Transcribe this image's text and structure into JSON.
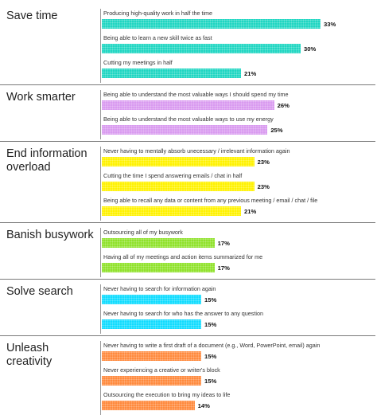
{
  "colors": {
    "save": "#1fd6c2",
    "smarter": "#d99af0",
    "overload": "#fff200",
    "busywork": "#8fe22a",
    "search": "#10dcff",
    "creativity": "#ff8a3d"
  },
  "chart_data": {
    "type": "bar",
    "orientation": "horizontal",
    "unit": "%",
    "xlim": [
      0,
      40
    ],
    "groups": [
      {
        "title": "Save time",
        "color_key": "save",
        "items": [
          {
            "label": "Producing high-quality work in half the time",
            "value": 33,
            "value_label": "33%"
          },
          {
            "label": "Being able to learn a new skill twice as fast",
            "value": 30,
            "value_label": "30%"
          },
          {
            "label": "Cutting my meetings in half",
            "value": 21,
            "value_label": "21%"
          }
        ]
      },
      {
        "title": "Work smarter",
        "color_key": "smarter",
        "items": [
          {
            "label": "Being able to understand the most valuable ways I should spend my time",
            "value": 26,
            "value_label": "26%"
          },
          {
            "label": "Being able to understand the most valuable ways to use my energy",
            "value": 25,
            "value_label": "25%"
          }
        ]
      },
      {
        "title": "End information overload",
        "color_key": "overload",
        "items": [
          {
            "label": "Never having to mentally absorb unecessary / irrelevant information again",
            "value": 23,
            "value_label": "23%"
          },
          {
            "label": "Cutting the time I spend answering emails / chat in half",
            "value": 23,
            "value_label": "23%"
          },
          {
            "label": "Being able to recall any data or content from any previous meeting / email / chat / file",
            "value": 21,
            "value_label": "21%"
          }
        ]
      },
      {
        "title": "Banish busywork",
        "color_key": "busywork",
        "items": [
          {
            "label": "Outsourcing all of my busywork",
            "value": 17,
            "value_label": "17%"
          },
          {
            "label": "Having all of my meetings and action items summarized for me",
            "value": 17,
            "value_label": "17%"
          }
        ]
      },
      {
        "title": "Solve search",
        "color_key": "search",
        "items": [
          {
            "label": "Never having to search for information again",
            "value": 15,
            "value_label": "15%"
          },
          {
            "label": "Never having to search for who has the answer to any question",
            "value": 15,
            "value_label": "15%"
          }
        ]
      },
      {
        "title": "Unleash creativity",
        "color_key": "creativity",
        "items": [
          {
            "label": "Never having to write a first draft of a document (e.g., Word, PowerPoint, email) again",
            "value": 15,
            "value_label": "15%"
          },
          {
            "label": "Never experiencing a creative or writer's block",
            "value": 15,
            "value_label": "15%"
          },
          {
            "label": "Outsourcing the execution to bring my ideas to life",
            "value": 14,
            "value_label": "14%"
          }
        ]
      }
    ]
  }
}
